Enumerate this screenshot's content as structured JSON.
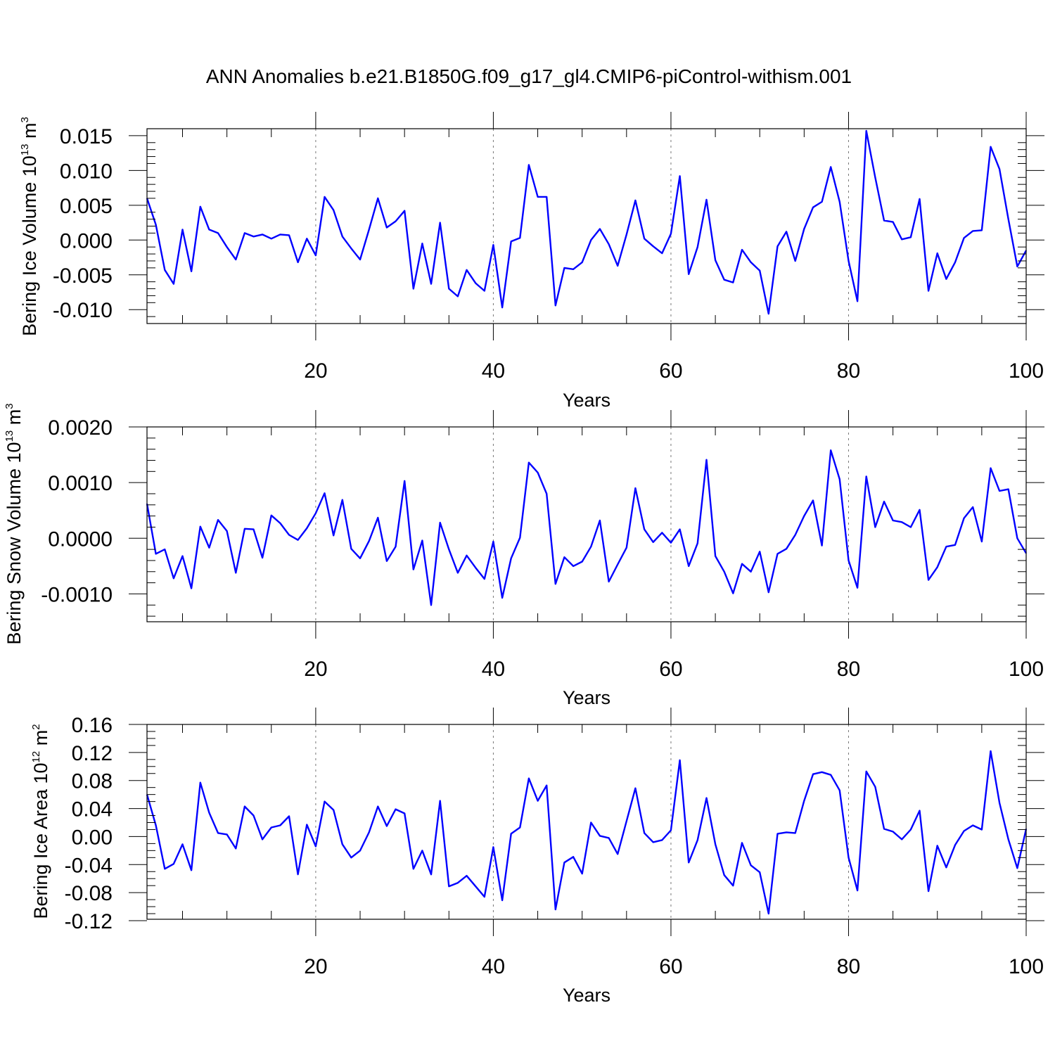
{
  "title": "ANN Anomalies b.e21.B1850G.f09_g17_gl4.CMIP6-piControl-withism.001",
  "colors": {
    "series": "#0000ff",
    "frame": "#000000",
    "grid": "#777777",
    "background": "#ffffff"
  },
  "chart_data": [
    {
      "type": "line",
      "ylabel": {
        "main": "Bering Ice Volume 10",
        "exp": "13",
        "unit": " m",
        "unit_exp": "3"
      },
      "xlabel": "Years",
      "xlim": [
        1,
        100
      ],
      "ylim": [
        -0.012,
        0.016
      ],
      "xticks": [
        20,
        40,
        60,
        80,
        100
      ],
      "xticks_minor_step": 5,
      "yticks": [
        {
          "v": 0.015,
          "label": "0.015"
        },
        {
          "v": 0.01,
          "label": "0.010"
        },
        {
          "v": 0.005,
          "label": "0.005"
        },
        {
          "v": 0.0,
          "label": "0.000"
        },
        {
          "v": -0.005,
          "label": "-0.005"
        },
        {
          "v": -0.01,
          "label": "-0.010"
        }
      ],
      "yticks_minor_step": 0.001,
      "grid": "vertical dashed at major x ticks",
      "values": [
        0.006,
        0.0022,
        -0.0043,
        -0.0063,
        0.0015,
        -0.0045,
        0.0048,
        0.0015,
        0.001,
        -0.001,
        -0.0028,
        0.001,
        0.0005,
        0.0008,
        0.0002,
        0.0008,
        0.0007,
        -0.0032,
        0.0002,
        -0.0022,
        0.0062,
        0.0043,
        0.0005,
        -0.0012,
        -0.0028,
        0.0015,
        0.006,
        0.0018,
        0.0027,
        0.0042,
        -0.007,
        -0.0005,
        -0.0063,
        0.0025,
        -0.007,
        -0.0081,
        -0.0043,
        -0.0062,
        -0.0073,
        -0.0007,
        -0.0097,
        -0.0002,
        0.0003,
        0.0108,
        0.0062,
        0.0062,
        -0.0094,
        -0.004,
        -0.0042,
        -0.0032,
        0.0,
        0.0016,
        -0.0006,
        -0.0037,
        0.0008,
        0.0057,
        0.0002,
        -0.0009,
        -0.0019,
        0.0009,
        0.0092,
        -0.0049,
        -0.001,
        0.0058,
        -0.0029,
        -0.0057,
        -0.0061,
        -0.0014,
        -0.0032,
        -0.0044,
        -0.0106,
        -0.0009,
        0.0012,
        -0.003,
        0.0016,
        0.0047,
        0.0055,
        0.0105,
        0.0055,
        -0.003,
        -0.0088,
        0.0157,
        0.009,
        0.0028,
        0.0026,
        0.0001,
        0.0004,
        0.0059,
        -0.0073,
        -0.0019,
        -0.0056,
        -0.0032,
        0.0003,
        0.0013,
        0.0014,
        0.0134,
        0.0102,
        0.003,
        -0.0038,
        -0.0015
      ]
    },
    {
      "type": "line",
      "ylabel": {
        "main": "Bering Snow Volume 10",
        "exp": "13",
        "unit": " m",
        "unit_exp": "3"
      },
      "xlabel": "Years",
      "xlim": [
        1,
        100
      ],
      "ylim": [
        -0.0015,
        0.002
      ],
      "xticks": [
        20,
        40,
        60,
        80,
        100
      ],
      "xticks_minor_step": 5,
      "yticks": [
        {
          "v": 0.002,
          "label": "0.0020"
        },
        {
          "v": 0.001,
          "label": "0.0010"
        },
        {
          "v": 0.0,
          "label": "0.0000"
        },
        {
          "v": -0.001,
          "label": "-0.0010"
        }
      ],
      "yticks_minor_step": 0.0002,
      "grid": "vertical dashed at major x ticks",
      "values": [
        0.00062,
        -0.00028,
        -0.0002,
        -0.00072,
        -0.00032,
        -0.0009,
        0.00021,
        -0.00017,
        0.00033,
        0.00013,
        -0.00062,
        0.00017,
        0.00016,
        -0.00035,
        0.00041,
        0.00027,
        6e-05,
        -3e-05,
        0.00018,
        0.00045,
        0.00081,
        5e-05,
        0.00069,
        -0.00019,
        -0.00036,
        -5e-05,
        0.00037,
        -0.00041,
        -0.00015,
        0.00103,
        -0.00056,
        -4e-05,
        -0.0012,
        0.00028,
        -0.0002,
        -0.00062,
        -0.00031,
        -0.00053,
        -0.00073,
        -6e-05,
        -0.00107,
        -0.00036,
        1e-05,
        0.00136,
        0.00118,
        0.0008,
        -0.00082,
        -0.00034,
        -0.0005,
        -0.00042,
        -0.00015,
        0.00032,
        -0.00078,
        -0.00047,
        -0.00017,
        0.0009,
        0.00016,
        -7e-05,
        0.0001,
        -8e-05,
        0.00016,
        -0.0005,
        -9e-05,
        0.00141,
        -0.00032,
        -0.0006,
        -0.00099,
        -0.00046,
        -0.0006,
        -0.00024,
        -0.00097,
        -0.00028,
        -0.00019,
        6e-05,
        0.0004,
        0.00068,
        -0.00013,
        0.00158,
        0.00106,
        -0.0004,
        -0.00089,
        0.00111,
        0.0002,
        0.00066,
        0.00032,
        0.00029,
        0.0002,
        0.00051,
        -0.00075,
        -0.00052,
        -0.00015,
        -0.00012,
        0.00036,
        0.00056,
        -6e-05,
        0.00126,
        0.00085,
        0.00088,
        0.0,
        -0.00027
      ]
    },
    {
      "type": "line",
      "ylabel": {
        "main": "Bering Ice Area 10",
        "exp": "12",
        "unit": " m",
        "unit_exp": "2"
      },
      "xlabel": "Years",
      "xlim": [
        1,
        100
      ],
      "ylim": [
        -0.118,
        0.16
      ],
      "xticks": [
        20,
        40,
        60,
        80,
        100
      ],
      "xticks_minor_step": 5,
      "yticks": [
        {
          "v": 0.16,
          "label": "0.16"
        },
        {
          "v": 0.12,
          "label": "0.12"
        },
        {
          "v": 0.08,
          "label": "0.08"
        },
        {
          "v": 0.04,
          "label": "0.04"
        },
        {
          "v": 0.0,
          "label": "0.00"
        },
        {
          "v": -0.04,
          "label": "-0.04"
        },
        {
          "v": -0.08,
          "label": "-0.08"
        },
        {
          "v": -0.12,
          "label": "-0.12"
        }
      ],
      "yticks_minor_step": 0.01,
      "grid": "vertical dashed at major x ticks",
      "values": [
        0.06,
        0.016,
        -0.046,
        -0.039,
        -0.011,
        -0.048,
        0.077,
        0.034,
        0.005,
        0.003,
        -0.017,
        0.043,
        0.03,
        -0.004,
        0.013,
        0.016,
        0.029,
        -0.054,
        0.017,
        -0.014,
        0.05,
        0.038,
        -0.011,
        -0.03,
        -0.02,
        0.006,
        0.043,
        0.015,
        0.039,
        0.033,
        -0.046,
        -0.02,
        -0.054,
        0.051,
        -0.071,
        -0.066,
        -0.056,
        -0.071,
        -0.086,
        -0.015,
        -0.091,
        0.004,
        0.013,
        0.083,
        0.051,
        0.073,
        -0.104,
        -0.037,
        -0.029,
        -0.053,
        0.02,
        0.001,
        -0.002,
        -0.025,
        0.022,
        0.069,
        0.005,
        -0.008,
        -0.005,
        0.009,
        0.109,
        -0.037,
        -0.005,
        0.055,
        -0.011,
        -0.055,
        -0.07,
        -0.009,
        -0.041,
        -0.051,
        -0.11,
        0.004,
        0.006,
        0.005,
        0.051,
        0.089,
        0.092,
        0.088,
        0.066,
        -0.03,
        -0.077,
        0.093,
        0.071,
        0.011,
        0.007,
        -0.004,
        0.01,
        0.037,
        -0.078,
        -0.013,
        -0.044,
        -0.012,
        0.008,
        0.016,
        0.01,
        0.122,
        0.048,
        -0.004,
        -0.045,
        0.011
      ]
    }
  ]
}
